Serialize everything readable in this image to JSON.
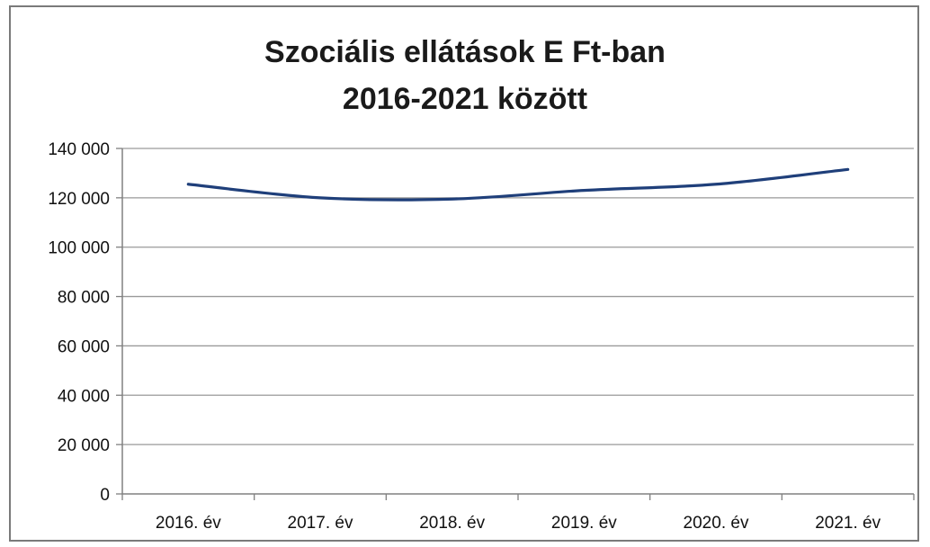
{
  "chart_data": {
    "type": "line",
    "title": "Szociális ellátások E Ft-ban",
    "subtitle": "2016-2021 között",
    "xlabel": "",
    "ylabel": "",
    "categories": [
      "2016. év",
      "2017. év",
      "2018. év",
      "2019. év",
      "2020. év",
      "2021. év"
    ],
    "series": [
      {
        "values": [
          125500,
          120000,
          119500,
          123000,
          125500,
          131500
        ]
      }
    ],
    "ylim": [
      0,
      140000
    ],
    "y_ticks": [
      0,
      20000,
      40000,
      60000,
      80000,
      100000,
      120000,
      140000
    ],
    "y_tick_labels": [
      "0",
      "20 000",
      "40 000",
      "60 000",
      "80 000",
      "100 000",
      "120 000",
      "140 000"
    ],
    "grid": true,
    "legend": "none",
    "colors": {
      "line": "#1f3f7a",
      "grid": "#9a9a9a",
      "axis": "#808080"
    }
  }
}
